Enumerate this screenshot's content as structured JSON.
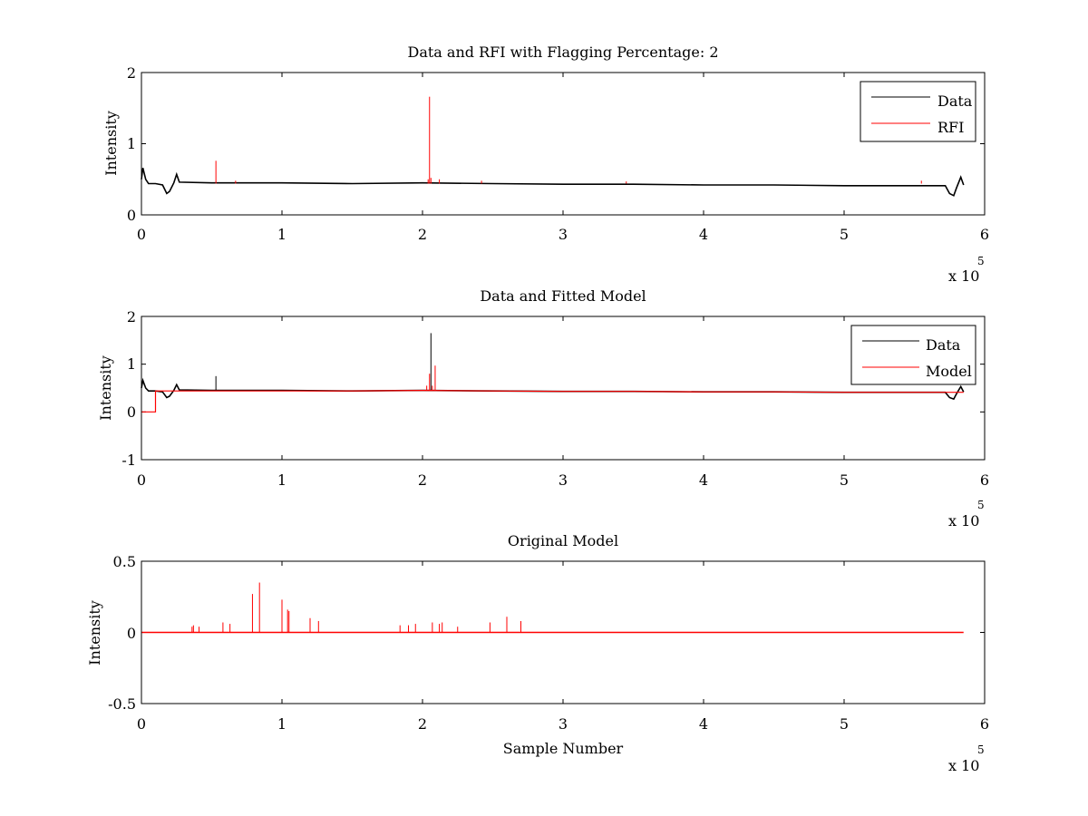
{
  "chart_data": [
    {
      "type": "line",
      "title": "Data and RFI with Flagging Percentage: 2",
      "xlabel": "",
      "ylabel": "Intensity",
      "xlim": [
        0,
        6
      ],
      "ylim": [
        0,
        2
      ],
      "x_ticks": [
        "0",
        "1",
        "2",
        "3",
        "4",
        "5",
        "6"
      ],
      "y_ticks": [
        "0",
        "1",
        "2"
      ],
      "x_multiplier": "x 10",
      "x_multiplier_exp": "5",
      "legend_position": "top-right",
      "series": [
        {
          "name": "Data",
          "color": "#000000",
          "x": [
            0,
            0.01,
            0.03,
            0.05,
            0.1,
            0.15,
            0.18,
            0.2,
            0.23,
            0.25,
            0.27,
            0.5,
            1,
            1.5,
            2,
            2.5,
            3,
            3.5,
            4,
            4.5,
            5,
            5.5,
            5.72,
            5.75,
            5.78,
            5.8,
            5.83,
            5.85
          ],
          "y": [
            0.5,
            0.66,
            0.5,
            0.44,
            0.44,
            0.42,
            0.3,
            0.33,
            0.45,
            0.57,
            0.46,
            0.45,
            0.45,
            0.44,
            0.45,
            0.44,
            0.43,
            0.43,
            0.42,
            0.42,
            0.41,
            0.41,
            0.41,
            0.3,
            0.27,
            0.38,
            0.53,
            0.42
          ]
        },
        {
          "name": "RFI",
          "color": "#ff0000",
          "spikes": [
            {
              "x": 0.53,
              "y": 0.76
            },
            {
              "x": 0.67,
              "y": 0.48
            },
            {
              "x": 2.04,
              "y": 0.5
            },
            {
              "x": 2.05,
              "y": 1.66
            },
            {
              "x": 2.06,
              "y": 0.52
            },
            {
              "x": 2.12,
              "y": 0.5
            },
            {
              "x": 2.42,
              "y": 0.48
            },
            {
              "x": 3.45,
              "y": 0.47
            },
            {
              "x": 5.55,
              "y": 0.48
            }
          ]
        }
      ]
    },
    {
      "type": "line",
      "title": "Data and Fitted Model",
      "xlabel": "",
      "ylabel": "Intensity",
      "xlim": [
        0,
        6
      ],
      "ylim": [
        -1,
        2
      ],
      "x_ticks": [
        "0",
        "1",
        "2",
        "3",
        "4",
        "5",
        "6"
      ],
      "y_ticks": [
        "-1",
        "0",
        "1",
        "2"
      ],
      "x_multiplier": "x 10",
      "x_multiplier_exp": "5",
      "legend_position": "top-right",
      "series": [
        {
          "name": "Data",
          "color": "#000000",
          "x": [
            0,
            0.01,
            0.03,
            0.05,
            0.1,
            0.15,
            0.18,
            0.2,
            0.23,
            0.25,
            0.27,
            0.5,
            1,
            1.5,
            2,
            2.5,
            3,
            3.5,
            4,
            4.5,
            5,
            5.5,
            5.72,
            5.75,
            5.78,
            5.8,
            5.83,
            5.85
          ],
          "y": [
            0.5,
            0.66,
            0.5,
            0.44,
            0.44,
            0.42,
            0.3,
            0.33,
            0.45,
            0.57,
            0.46,
            0.45,
            0.45,
            0.44,
            0.45,
            0.44,
            0.43,
            0.43,
            0.42,
            0.42,
            0.41,
            0.41,
            0.41,
            0.3,
            0.27,
            0.38,
            0.53,
            0.42
          ],
          "spikes": [
            {
              "x": 0.53,
              "y": 0.75
            },
            {
              "x": 2.06,
              "y": 1.65
            }
          ]
        },
        {
          "name": "Model",
          "color": "#ff0000",
          "x": [
            0,
            0.1,
            0.1,
            0.5,
            1,
            1.5,
            2,
            2.5,
            3,
            3.5,
            4,
            4.5,
            5,
            5.5,
            5.85
          ],
          "y": [
            0,
            0,
            0.44,
            0.44,
            0.44,
            0.44,
            0.45,
            0.44,
            0.43,
            0.43,
            0.42,
            0.42,
            0.41,
            0.41,
            0.41
          ],
          "spikes": [
            {
              "x": 2.03,
              "y": 0.55
            },
            {
              "x": 2.05,
              "y": 0.8
            },
            {
              "x": 2.07,
              "y": 0.55
            },
            {
              "x": 2.09,
              "y": 0.97
            }
          ]
        }
      ]
    },
    {
      "type": "line",
      "title": "Original Model",
      "xlabel": "Sample Number",
      "ylabel": "Intensity",
      "xlim": [
        0,
        6
      ],
      "ylim": [
        -0.5,
        0.5
      ],
      "x_ticks": [
        "0",
        "1",
        "2",
        "3",
        "4",
        "5",
        "6"
      ],
      "y_ticks": [
        "-0.5",
        "0",
        "0.5"
      ],
      "x_multiplier": "x 10",
      "x_multiplier_exp": "5",
      "series": [
        {
          "name": "",
          "color": "#ff0000",
          "baseline": 0,
          "x_range": [
            0,
            5.85
          ],
          "spikes": [
            {
              "x": 0.36,
              "y": 0.04
            },
            {
              "x": 0.37,
              "y": 0.05
            },
            {
              "x": 0.41,
              "y": 0.04
            },
            {
              "x": 0.58,
              "y": 0.07
            },
            {
              "x": 0.63,
              "y": 0.06
            },
            {
              "x": 0.79,
              "y": 0.27
            },
            {
              "x": 0.84,
              "y": 0.35
            },
            {
              "x": 1.0,
              "y": 0.23
            },
            {
              "x": 1.04,
              "y": 0.16
            },
            {
              "x": 1.05,
              "y": 0.15
            },
            {
              "x": 1.2,
              "y": 0.1
            },
            {
              "x": 1.26,
              "y": 0.08
            },
            {
              "x": 1.84,
              "y": 0.05
            },
            {
              "x": 1.9,
              "y": 0.05
            },
            {
              "x": 1.95,
              "y": 0.06
            },
            {
              "x": 2.07,
              "y": 0.07
            },
            {
              "x": 2.12,
              "y": 0.06
            },
            {
              "x": 2.14,
              "y": 0.07
            },
            {
              "x": 2.25,
              "y": 0.04
            },
            {
              "x": 2.48,
              "y": 0.07
            },
            {
              "x": 2.6,
              "y": 0.11
            },
            {
              "x": 2.7,
              "y": 0.08
            }
          ]
        }
      ]
    }
  ]
}
